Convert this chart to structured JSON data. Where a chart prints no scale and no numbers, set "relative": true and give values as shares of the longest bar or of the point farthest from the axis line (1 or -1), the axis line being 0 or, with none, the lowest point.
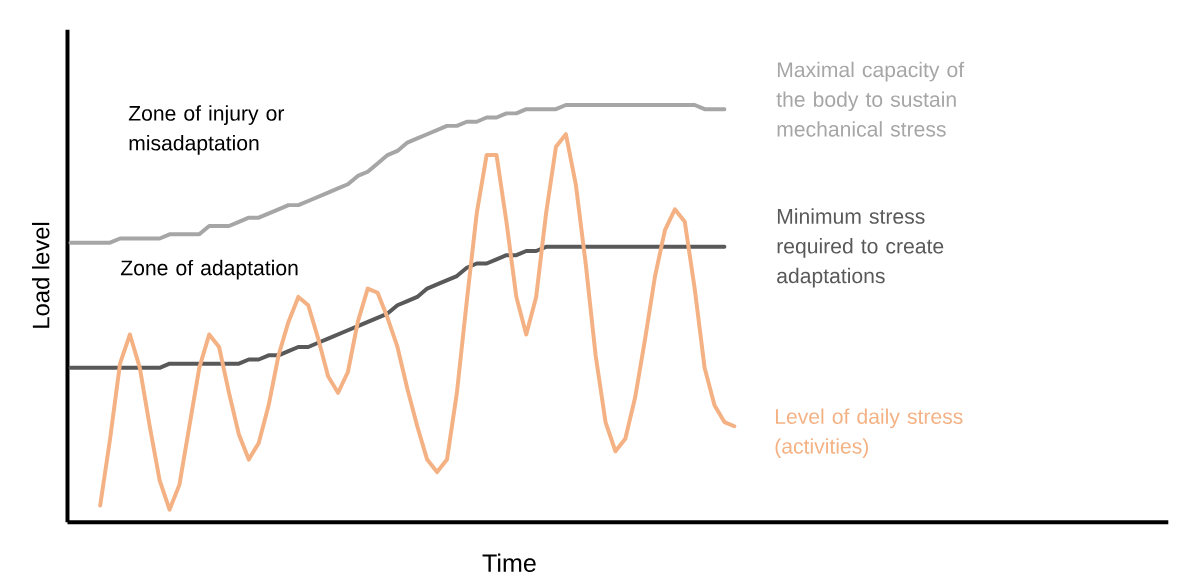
{
  "chart_data": {
    "type": "line",
    "relative": true,
    "xlabel": "Time",
    "ylabel": "Load level",
    "categories": [
      null,
      null,
      null,
      null,
      null,
      null,
      null,
      null,
      null,
      null,
      null,
      null,
      null,
      null,
      null,
      null,
      null,
      null,
      null,
      null,
      null,
      null,
      null,
      null,
      null,
      null,
      null,
      null,
      null,
      null,
      null,
      null,
      null,
      null,
      null,
      null,
      null,
      null,
      null,
      null,
      null,
      null,
      null,
      null,
      null,
      null,
      null,
      null,
      null,
      null,
      null,
      null,
      null,
      null,
      null,
      null,
      null,
      null,
      null,
      null,
      null,
      null,
      null,
      null,
      null,
      null,
      null,
      null
    ],
    "series": [
      {
        "name": "Maximal capacity of the body to sustain mechanical stress",
        "color": "#a6a6a6",
        "values": [
          0.67,
          0.67,
          0.67,
          0.67,
          0.67,
          0.68,
          0.68,
          0.68,
          0.68,
          0.68,
          0.69,
          0.69,
          0.69,
          0.69,
          0.71,
          0.71,
          0.71,
          0.72,
          0.73,
          0.73,
          0.74,
          0.75,
          0.76,
          0.76,
          0.77,
          0.78,
          0.79,
          0.8,
          0.81,
          0.83,
          0.84,
          0.86,
          0.88,
          0.89,
          0.91,
          0.92,
          0.93,
          0.94,
          0.95,
          0.95,
          0.96,
          0.96,
          0.97,
          0.97,
          0.98,
          0.98,
          0.99,
          0.99,
          0.99,
          0.99,
          1,
          1,
          1,
          1,
          1,
          1,
          1,
          1,
          1,
          1,
          1,
          1,
          1,
          1,
          0.99,
          0.99,
          0.99,
          null
        ]
      },
      {
        "name": "Minimum stress required to create adaptations",
        "color": "#595959",
        "values": [
          0.37,
          0.37,
          0.37,
          0.37,
          0.37,
          0.37,
          0.37,
          0.37,
          0.37,
          0.37,
          0.38,
          0.38,
          0.38,
          0.38,
          0.38,
          0.38,
          0.38,
          0.38,
          0.39,
          0.39,
          0.4,
          0.4,
          0.41,
          0.42,
          0.42,
          0.43,
          0.44,
          0.45,
          0.46,
          0.47,
          0.48,
          0.49,
          0.5,
          0.52,
          0.53,
          0.54,
          0.56,
          0.57,
          0.58,
          0.59,
          0.61,
          0.62,
          0.62,
          0.63,
          0.64,
          0.64,
          0.65,
          0.65,
          0.66,
          0.66,
          0.66,
          0.66,
          0.66,
          0.66,
          0.66,
          0.66,
          0.66,
          0.66,
          0.66,
          0.66,
          0.66,
          0.66,
          0.66,
          0.66,
          0.66,
          0.66,
          0.66,
          null
        ]
      },
      {
        "name": "Level of daily stress (activities)",
        "color": "#f4b183",
        "values": [
          null,
          null,
          null,
          0.04,
          0.2,
          0.38,
          0.45,
          0.37,
          0.23,
          0.1,
          0.03,
          0.09,
          0.23,
          0.37,
          0.45,
          0.42,
          0.31,
          0.21,
          0.15,
          0.19,
          0.28,
          0.4,
          0.48,
          0.54,
          0.52,
          0.44,
          0.35,
          0.31,
          0.36,
          0.48,
          0.56,
          0.55,
          0.49,
          0.42,
          0.32,
          0.23,
          0.15,
          0.12,
          0.15,
          0.31,
          0.53,
          0.74,
          0.88,
          0.88,
          0.72,
          0.54,
          0.45,
          0.54,
          0.74,
          0.9,
          0.93,
          0.81,
          0.62,
          0.4,
          0.24,
          0.17,
          0.2,
          0.3,
          0.44,
          0.59,
          0.7,
          0.75,
          0.72,
          0.56,
          0.37,
          0.28,
          0.24,
          0.23
        ]
      }
    ],
    "annotations": [
      "Zone of injury or misadaptation",
      "Zone of adaptation"
    ]
  }
}
